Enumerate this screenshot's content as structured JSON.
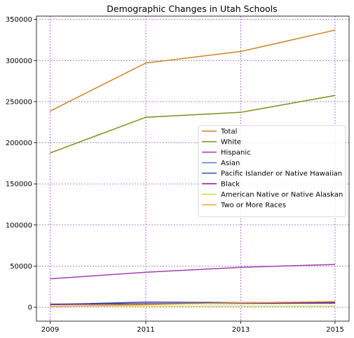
{
  "chart_data": {
    "type": "line",
    "title": "Demographic Changes in Utah Schools",
    "xlabel": "",
    "ylabel": "",
    "x": [
      2009,
      2011,
      2013,
      2015
    ],
    "x_ticks": [
      "2009",
      "2011",
      "2013",
      "2015"
    ],
    "y_ticks": [
      "0",
      "50000",
      "100000",
      "150000",
      "200000",
      "250000",
      "300000",
      "350000"
    ],
    "ylim": [
      -17000,
      354000
    ],
    "grid": true,
    "legend_position": "center-right",
    "series": [
      {
        "name": "Total",
        "color": "#c8861e",
        "values": [
          238500,
          297000,
          311000,
          337000
        ]
      },
      {
        "name": "White",
        "color": "#7b8f1a",
        "values": [
          187500,
          231000,
          237000,
          257500
        ]
      },
      {
        "name": "Hispanic",
        "color": "#a040b0",
        "values": [
          34500,
          42500,
          48500,
          52000
        ]
      },
      {
        "name": "Asian",
        "color": "#5a7fc0",
        "values": [
          3800,
          4200,
          4600,
          5100
        ]
      },
      {
        "name": "Pacific Islander or Native Hawaiian",
        "color": "#2e55a8",
        "values": [
          3200,
          6200,
          5600,
          5900
        ]
      },
      {
        "name": "Black",
        "color": "#7a2090",
        "values": [
          3300,
          4100,
          4700,
          5000
        ]
      },
      {
        "name": "American Native or Native Alaskan",
        "color": "#cfe040",
        "values": [
          1300,
          1300,
          1200,
          1200
        ]
      },
      {
        "name": "Two or More Races",
        "color": "#e8a838",
        "values": [
          800,
          3000,
          5400,
          7000
        ]
      }
    ]
  }
}
